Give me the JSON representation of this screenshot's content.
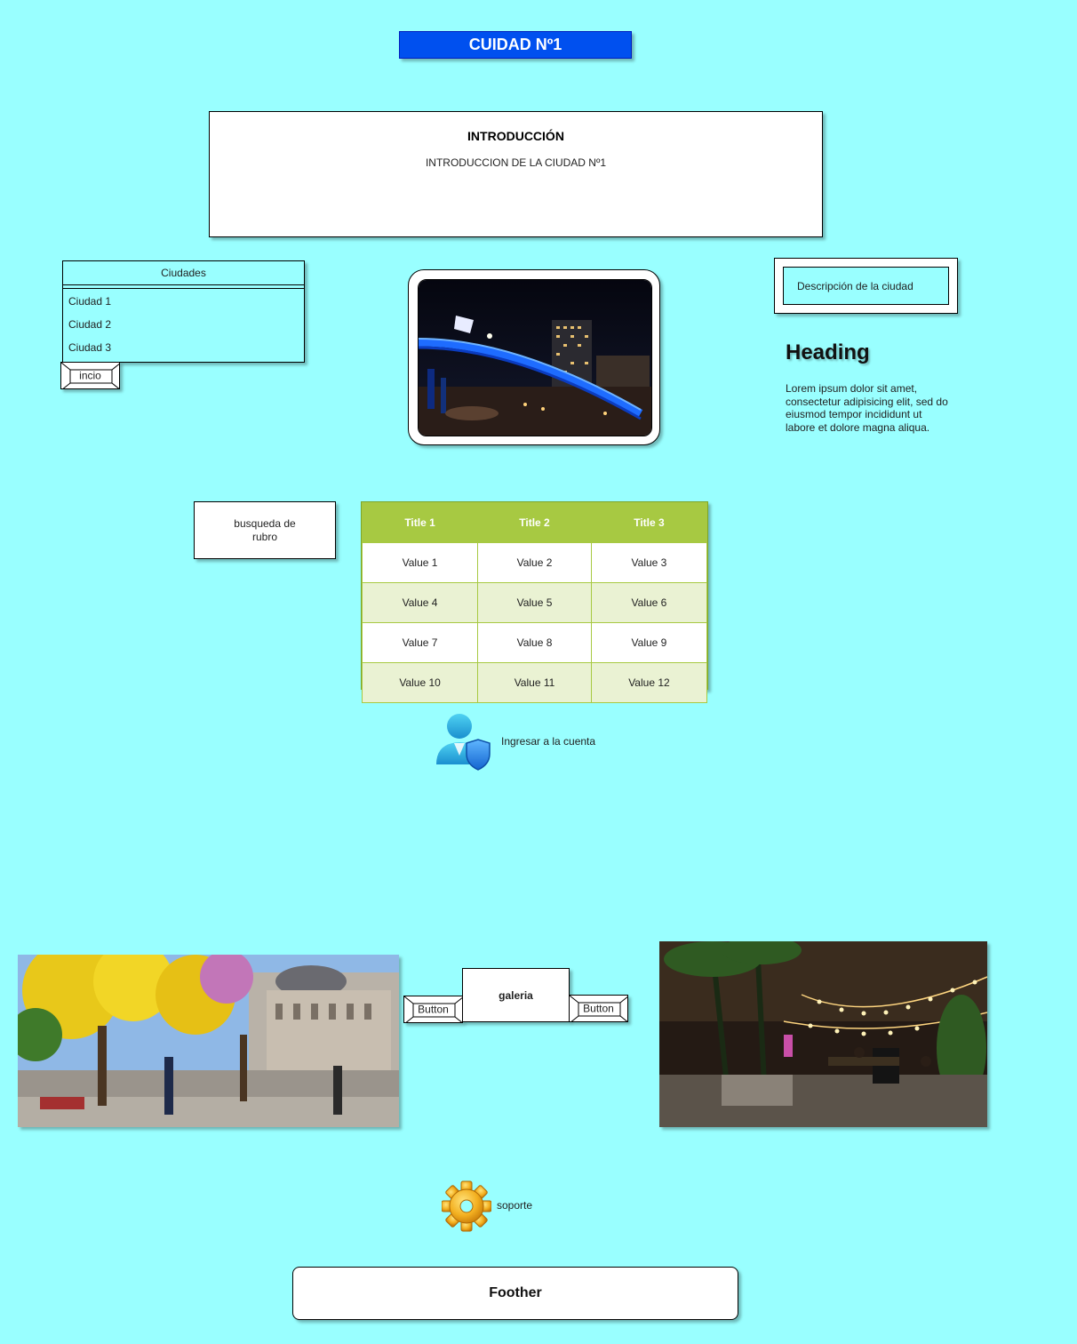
{
  "header": {
    "title": "CUIDAD Nº1"
  },
  "intro": {
    "heading": "INTRODUCCIÓN",
    "text": "INTRODUCCION DE LA CIUDAD Nº1"
  },
  "cities": {
    "header": "Ciudades",
    "items": [
      "Ciudad 1",
      "Ciudad 2",
      "Ciudad 3"
    ],
    "inicio_button": "incio"
  },
  "photo_center": {
    "subject": "night bridge with blue lights"
  },
  "description": {
    "label": "Descripción de la ciudad"
  },
  "content": {
    "heading": "Heading",
    "body": "Lorem ipsum dolor sit amet, consectetur adipisicing elit, sed do eiusmod tempor incididunt ut labore et dolore magna aliqua."
  },
  "search": {
    "label": "busqueda de rubro"
  },
  "table": {
    "headers": [
      "Title 1",
      "Title 2",
      "Title 3"
    ],
    "rows": [
      [
        "Value 1",
        "Value 2",
        "Value 3"
      ],
      [
        "Value 4",
        "Value 5",
        "Value 6"
      ],
      [
        "Value 7",
        "Value 8",
        "Value 9"
      ],
      [
        "Value 10",
        "Value 11",
        "Value 12"
      ]
    ],
    "colors": {
      "header": "#a7c942",
      "alt_row": "#eaf2d3",
      "row": "#ffffff"
    }
  },
  "account": {
    "label": "Ingresar a  la cuenta",
    "icon": "user-shield-icon"
  },
  "gallery": {
    "label": "galeria",
    "prev_button": "Button",
    "next_button": "Button",
    "left_photo": "plaza with yellow trees",
    "right_photo": "outdoor terrace with string lights"
  },
  "support": {
    "label": "soporte",
    "icon": "gear-icon"
  },
  "footer": {
    "label": "Foother"
  },
  "colors": {
    "background": "#99ffff",
    "title_bg": "#0050ef"
  }
}
